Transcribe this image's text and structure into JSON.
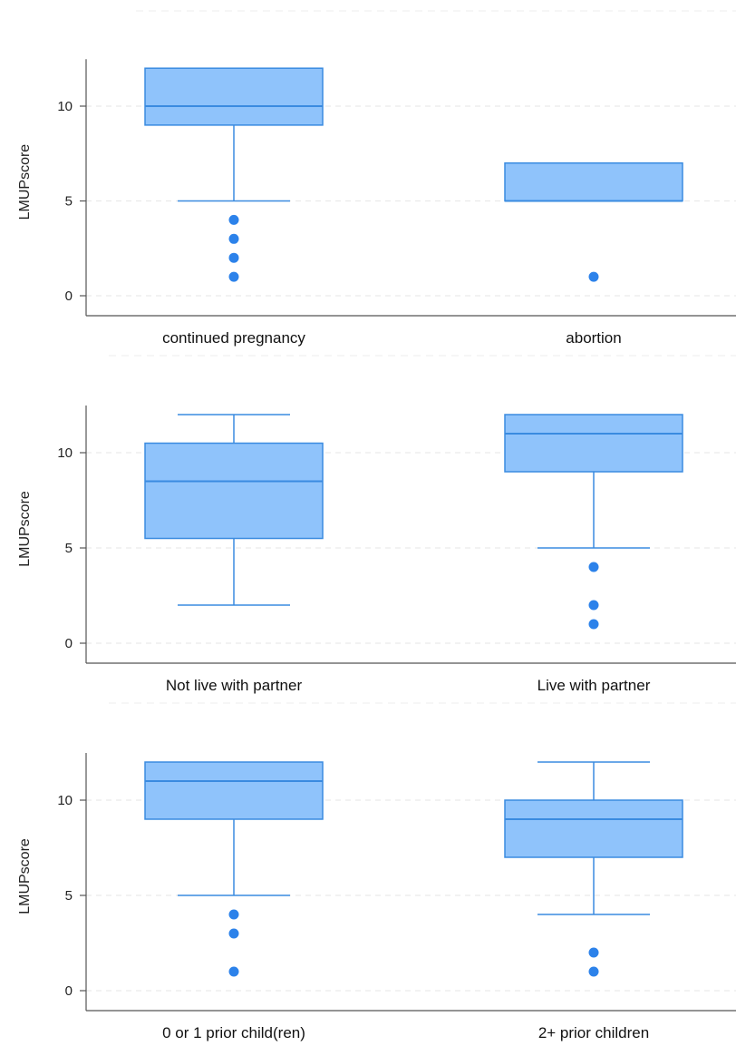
{
  "chart_data": [
    {
      "type": "box",
      "ylabel": "LMUPscore",
      "ylim": [
        0,
        12
      ],
      "yticks": [
        0,
        5,
        10
      ],
      "grid": true,
      "categories": [
        "continued pregnancy",
        "abortion"
      ],
      "boxes": [
        {
          "q1": 9,
          "median": 10,
          "q3": 12,
          "whisker_low": 5,
          "whisker_high": 12,
          "outliers": [
            4,
            3,
            2,
            1
          ]
        },
        {
          "q1": 5,
          "median": 5,
          "q3": 7,
          "whisker_low": 5,
          "whisker_high": 7,
          "outliers": [
            1
          ]
        }
      ]
    },
    {
      "type": "box",
      "ylabel": "LMUPscore",
      "ylim": [
        0,
        12
      ],
      "yticks": [
        0,
        5,
        10
      ],
      "grid": true,
      "categories": [
        "Not live with partner",
        "Live with partner"
      ],
      "boxes": [
        {
          "q1": 5.5,
          "median": 8.5,
          "q3": 10.5,
          "whisker_low": 2,
          "whisker_high": 12,
          "outliers": []
        },
        {
          "q1": 9,
          "median": 11,
          "q3": 12,
          "whisker_low": 5,
          "whisker_high": 12,
          "outliers": [
            4,
            2,
            1
          ]
        }
      ]
    },
    {
      "type": "box",
      "ylabel": "LMUPscore",
      "ylim": [
        0,
        12
      ],
      "yticks": [
        0,
        5,
        10
      ],
      "grid": true,
      "categories": [
        "0 or 1 prior child(ren)",
        "2+ prior children"
      ],
      "boxes": [
        {
          "q1": 9,
          "median": 11,
          "q3": 12,
          "whisker_low": 5,
          "whisker_high": 12,
          "outliers": [
            4,
            3,
            1
          ]
        },
        {
          "q1": 7,
          "median": 9,
          "q3": 10,
          "whisker_low": 4,
          "whisker_high": 12,
          "outliers": [
            2,
            1
          ]
        }
      ]
    }
  ],
  "colors": {
    "box_fill": "#8fc3fb",
    "box_stroke": "#3a8be0",
    "outlier": "#2c82ea",
    "axis": "#555555",
    "grid": "#e6e6e6"
  }
}
